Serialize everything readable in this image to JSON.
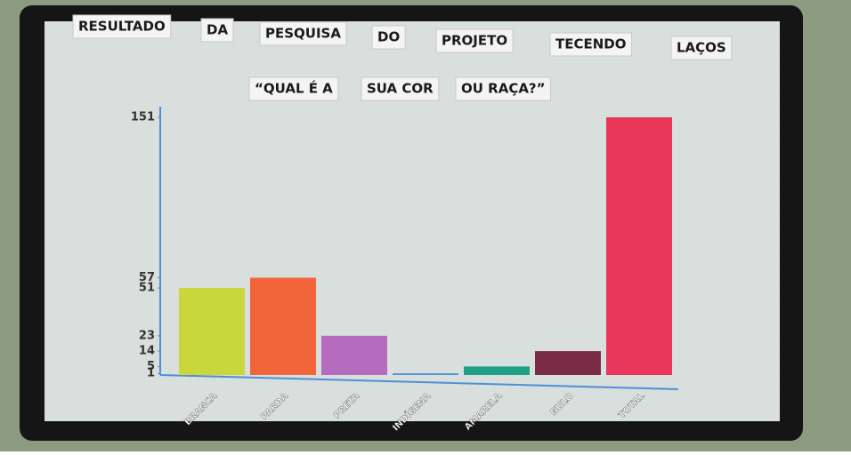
{
  "chart_data": {
    "type": "bar",
    "title": [
      "RESULTADO",
      "DA",
      "PESQUISA",
      "DO",
      "PROJETO",
      "TECENDO",
      "LAÇOS"
    ],
    "subtitle": [
      "“QUAL É A",
      "SUA COR",
      "OU RAÇA?”"
    ],
    "categories": [
      "BRANCA",
      "PARDA",
      "PRETA",
      "INDÍGENA",
      "AMARELA",
      "NULO",
      "TOTAL"
    ],
    "values": [
      51,
      57,
      23,
      1,
      5,
      14,
      151
    ],
    "colors": [
      "#c9d63c",
      "#f2643a",
      "#b56cbf",
      "#4f95dc",
      "#1f9f86",
      "#7a2b45",
      "#e8375b"
    ],
    "ylim": [
      0,
      151
    ],
    "yticks": [
      1,
      5,
      14,
      23,
      51,
      57,
      151
    ],
    "grid": false
  }
}
